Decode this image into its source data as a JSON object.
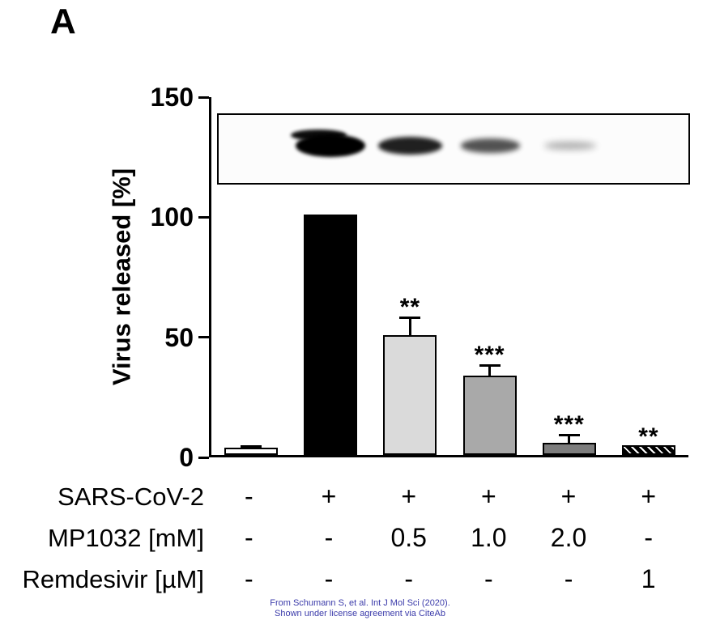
{
  "panel_label": "A",
  "chart_data": {
    "type": "bar",
    "title": "",
    "ylabel": "Virus released [%]",
    "xlabel": "",
    "ylim": [
      0,
      150
    ],
    "yticks": [
      0,
      50,
      100,
      150
    ],
    "grid": false,
    "legend": "none",
    "categories": [
      "Control",
      "SARS-CoV-2 only",
      "SARS-CoV-2 + MP1032 0.5 mM",
      "SARS-CoV-2 + MP1032 1.0 mM",
      "SARS-CoV-2 + MP1032 2.0 mM",
      "SARS-CoV-2 + Remdesivir 1 µM"
    ],
    "values": [
      3,
      100,
      50,
      33,
      5,
      4
    ],
    "errors": [
      1.5,
      0,
      8,
      5,
      4,
      0
    ],
    "significance": [
      "",
      "",
      "**",
      "***",
      "***",
      "**"
    ],
    "bar_colors": [
      "#ffffff",
      "#000000",
      "#dadada",
      "#a9a9a9",
      "#7d7d7d",
      "hatched"
    ],
    "x_rows": [
      {
        "label": "SARS-CoV-2",
        "values": [
          "-",
          "+",
          "+",
          "+",
          "+",
          "+"
        ]
      },
      {
        "label": "MP1032 [mM]",
        "values": [
          "-",
          "-",
          "0.5",
          "1.0",
          "2.0",
          "-"
        ]
      },
      {
        "label": "Remdesivir [µM]",
        "values": [
          "-",
          "-",
          "-",
          "-",
          "-",
          "1"
        ]
      }
    ],
    "blot_bands": [
      {
        "lane": 1,
        "intensity": 0
      },
      {
        "lane": 2,
        "intensity": 1.0
      },
      {
        "lane": 3,
        "intensity": 0.72
      },
      {
        "lane": 4,
        "intensity": 0.52
      },
      {
        "lane": 5,
        "intensity": 0.15
      },
      {
        "lane": 6,
        "intensity": 0
      }
    ]
  },
  "attribution": {
    "line1": "From Schumann S, et al. Int J Mol Sci (2020).",
    "line2": "Shown under license agreement via CiteAb",
    "color": "#3b3baa"
  }
}
